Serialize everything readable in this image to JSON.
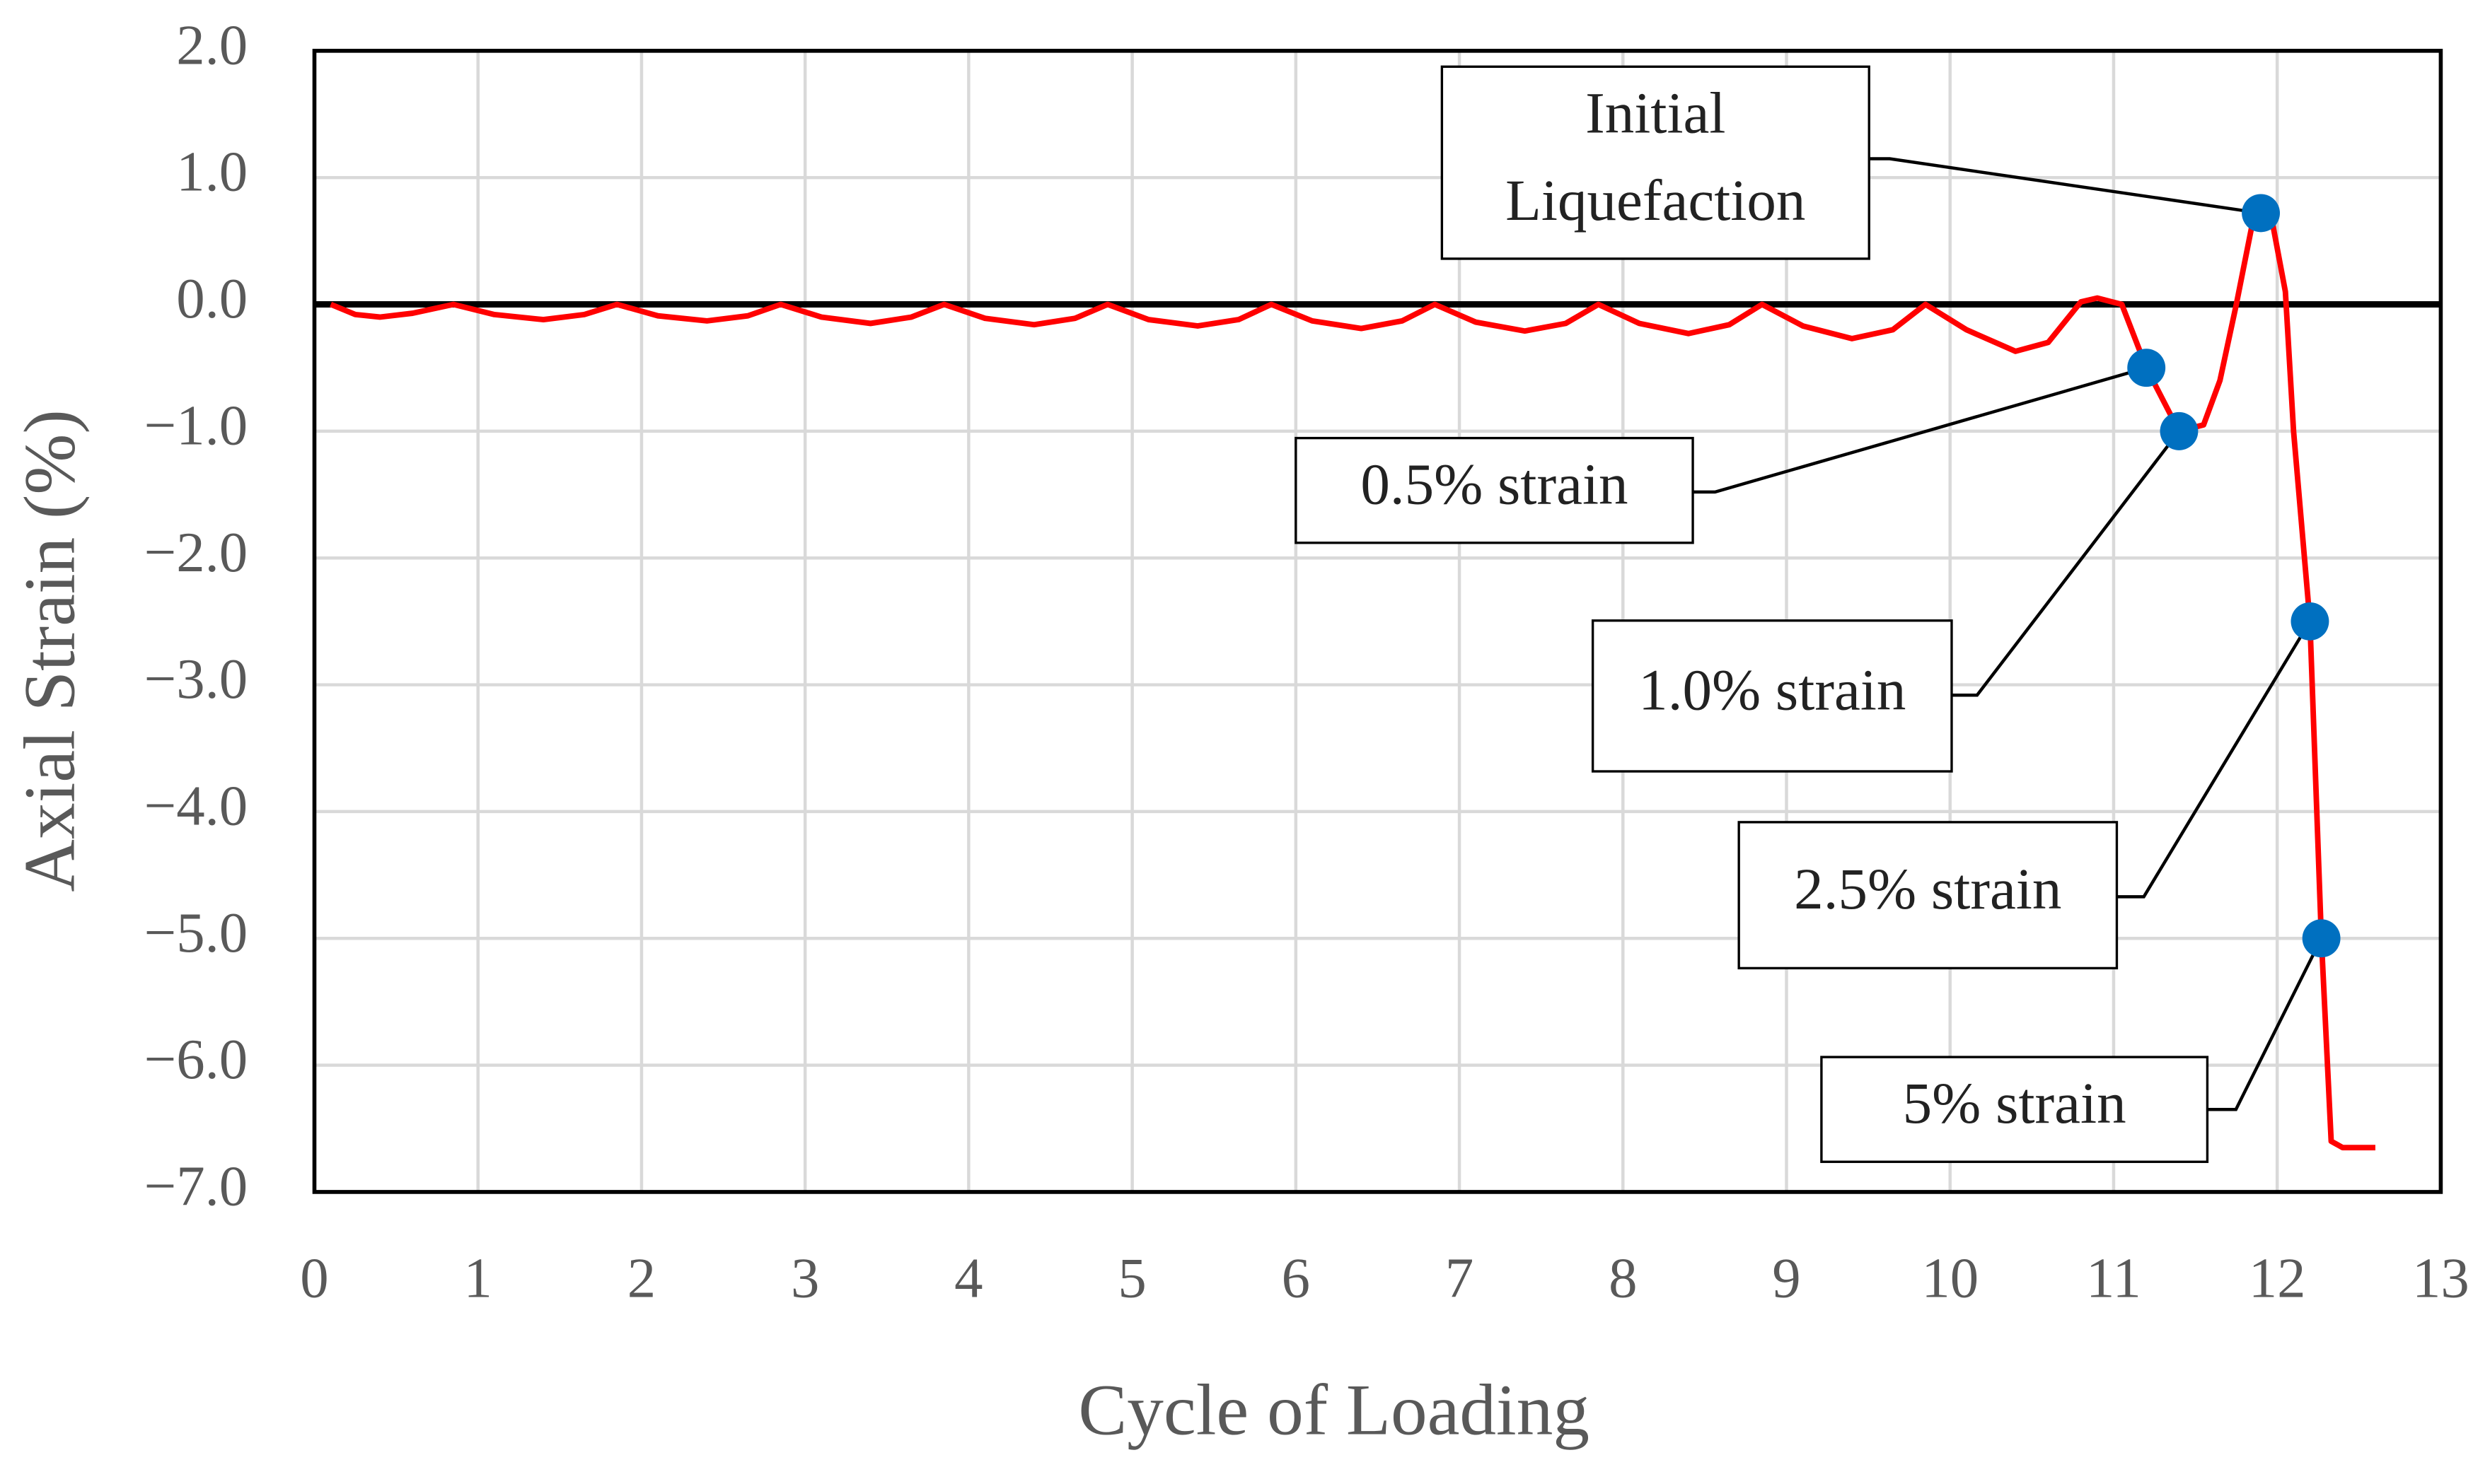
{
  "chart_data": {
    "type": "line",
    "xlabel": "Cycle of Loading",
    "ylabel": "Axial Strain (%)",
    "xlim": [
      0,
      13
    ],
    "xticks": [
      0,
      1,
      2,
      3,
      4,
      5,
      6,
      7,
      8,
      9,
      10,
      11,
      12,
      13
    ],
    "ylim": [
      -7,
      2
    ],
    "yticks": [
      {
        "value": 2,
        "label": "2.0"
      },
      {
        "value": 1,
        "label": "1.0"
      },
      {
        "value": 0,
        "label": "0.0"
      },
      {
        "value": -1,
        "label": "−1.0"
      },
      {
        "value": -2,
        "label": "−2.0"
      },
      {
        "value": -3,
        "label": "−3.0"
      },
      {
        "value": -4,
        "label": "−4.0"
      },
      {
        "value": -5,
        "label": "−5.0"
      },
      {
        "value": -6,
        "label": "−6.0"
      },
      {
        "value": -7,
        "label": "−7.0"
      }
    ],
    "grid": true,
    "series": [
      {
        "color": "#ff0000",
        "x": [
          0.1,
          0.25,
          0.4,
          0.6,
          0.85,
          1.1,
          1.4,
          1.65,
          1.85,
          2.1,
          2.4,
          2.65,
          2.85,
          3.1,
          3.4,
          3.65,
          3.85,
          4.1,
          4.4,
          4.65,
          4.85,
          5.1,
          5.4,
          5.65,
          5.85,
          6.1,
          6.4,
          6.65,
          6.85,
          7.1,
          7.4,
          7.65,
          7.85,
          8.1,
          8.4,
          8.65,
          8.85,
          9.1,
          9.4,
          9.65,
          9.85,
          10.1,
          10.4,
          10.6,
          10.8,
          10.9,
          11.05,
          11.2,
          11.3,
          11.4,
          11.55,
          11.65,
          11.75,
          11.85,
          11.9,
          11.97,
          12.05,
          12.1,
          12.2,
          12.27,
          12.33,
          12.4,
          12.6
        ],
        "values": [
          0,
          -0.08,
          -0.1,
          -0.07,
          0,
          -0.08,
          -0.12,
          -0.08,
          0,
          -0.09,
          -0.13,
          -0.09,
          0,
          -0.1,
          -0.15,
          -0.1,
          0,
          -0.11,
          -0.16,
          -0.11,
          0,
          -0.12,
          -0.17,
          -0.12,
          0,
          -0.13,
          -0.19,
          -0.13,
          0,
          -0.14,
          -0.21,
          -0.15,
          0,
          -0.15,
          -0.23,
          -0.16,
          0,
          -0.17,
          -0.27,
          -0.2,
          0,
          -0.2,
          -0.37,
          -0.3,
          0.02,
          0.05,
          0,
          -0.5,
          -0.75,
          -1.0,
          -0.95,
          -0.6,
          0,
          0.65,
          0.72,
          0.65,
          0.1,
          -1.0,
          -2.5,
          -5.0,
          -6.6,
          -6.65,
          -6.65
        ]
      },
      {
        "color": "#0070c0",
        "x": [
          11.9,
          11.2,
          11.4,
          12.2,
          12.27
        ],
        "values": [
          0.72,
          -0.5,
          -1.0,
          -2.5,
          -5.0
        ]
      }
    ],
    "annotations": [
      {
        "lines": [
          "Initial",
          "Liquefaction"
        ]
      },
      {
        "lines": [
          "0.5% strain"
        ]
      },
      {
        "lines": [
          "1.0% strain"
        ]
      },
      {
        "lines": [
          "2.5% strain"
        ]
      },
      {
        "lines": [
          "5% strain"
        ]
      }
    ]
  }
}
